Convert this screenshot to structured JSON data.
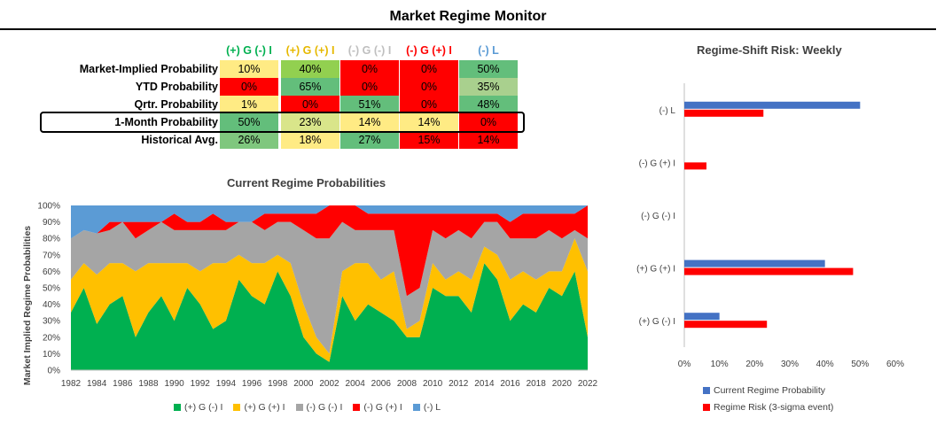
{
  "title": "Market Regime Monitor",
  "table": {
    "columns": [
      {
        "label": "(+) G (-) I",
        "color": "#00B050"
      },
      {
        "label": "(+) G (+) I",
        "color": "#E6B800"
      },
      {
        "label": "(-) G (-) I",
        "color": "#BFBFBF"
      },
      {
        "label": "(-) G (+) I",
        "color": "#FF0000"
      },
      {
        "label": "(-) L",
        "color": "#5B9BD5"
      }
    ],
    "rows": [
      {
        "label": "Market-Implied Probability",
        "values": [
          "10%",
          "40%",
          "0%",
          "0%",
          "50%"
        ],
        "colors": [
          "#FFEB84",
          "#92D050",
          "#FF0000",
          "#FF0000",
          "#63BE7B"
        ]
      },
      {
        "label": "YTD Probability",
        "values": [
          "0%",
          "65%",
          "0%",
          "0%",
          "35%"
        ],
        "colors": [
          "#FF0000",
          "#63BE7B",
          "#FF0000",
          "#FF0000",
          "#A9D08E"
        ]
      },
      {
        "label": "Qrtr. Probability",
        "values": [
          "1%",
          "0%",
          "51%",
          "0%",
          "48%"
        ],
        "colors": [
          "#FFEB84",
          "#FF0000",
          "#63BE7B",
          "#FF0000",
          "#63BE7B"
        ]
      },
      {
        "label": "1-Month Probability",
        "values": [
          "50%",
          "23%",
          "14%",
          "14%",
          "0%"
        ],
        "colors": [
          "#63BE7B",
          "#D9E58A",
          "#FFEB84",
          "#FFEB84",
          "#FF0000"
        ]
      },
      {
        "label": "Historical Avg.",
        "values": [
          "26%",
          "18%",
          "27%",
          "15%",
          "14%"
        ],
        "colors": [
          "#7FC77E",
          "#FFEB84",
          "#63BE7B",
          "#FF0000",
          "#FF0000"
        ]
      }
    ]
  },
  "chart_data": [
    {
      "type": "area",
      "title": "Current Regime Probabilities",
      "ylabel": "Market Implied Regime Probabilities",
      "xlabel": "",
      "ylim": [
        0,
        100
      ],
      "x_ticks": [
        "1982",
        "1984",
        "1986",
        "1988",
        "1990",
        "1992",
        "1994",
        "1996",
        "1998",
        "2000",
        "2002",
        "2004",
        "2006",
        "2008",
        "2010",
        "2012",
        "2014",
        "2016",
        "2018",
        "2020",
        "2022"
      ],
      "y_ticks": [
        "0%",
        "10%",
        "20%",
        "30%",
        "40%",
        "50%",
        "60%",
        "70%",
        "80%",
        "90%",
        "100%"
      ],
      "legend": "bottom",
      "x": [
        1982,
        1983,
        1984,
        1985,
        1986,
        1987,
        1988,
        1989,
        1990,
        1991,
        1992,
        1993,
        1994,
        1995,
        1996,
        1997,
        1998,
        1999,
        2000,
        2001,
        2002,
        2003,
        2004,
        2005,
        2006,
        2007,
        2008,
        2009,
        2010,
        2011,
        2012,
        2013,
        2014,
        2015,
        2016,
        2017,
        2018,
        2019,
        2020,
        2021,
        2022
      ],
      "series": [
        {
          "name": "(+) G (-) I",
          "color": "#00B050",
          "values": [
            35,
            50,
            28,
            40,
            45,
            20,
            35,
            45,
            30,
            50,
            40,
            25,
            30,
            55,
            45,
            40,
            60,
            45,
            20,
            10,
            5,
            45,
            30,
            40,
            35,
            30,
            20,
            20,
            50,
            45,
            45,
            35,
            65,
            55,
            30,
            40,
            35,
            50,
            45,
            60,
            20
          ]
        },
        {
          "name": "(+) G (+) I",
          "color": "#FFC000",
          "values": [
            20,
            15,
            30,
            25,
            20,
            40,
            30,
            20,
            35,
            15,
            20,
            40,
            35,
            15,
            20,
            25,
            10,
            20,
            20,
            10,
            5,
            15,
            35,
            25,
            20,
            30,
            5,
            10,
            15,
            10,
            15,
            20,
            10,
            15,
            25,
            20,
            20,
            10,
            15,
            20,
            40
          ]
        },
        {
          "name": "(-) G (-) I",
          "color": "#A5A5A5",
          "values": [
            25,
            20,
            25,
            20,
            25,
            20,
            20,
            25,
            20,
            20,
            25,
            20,
            20,
            20,
            25,
            20,
            20,
            25,
            45,
            60,
            70,
            30,
            20,
            20,
            30,
            25,
            20,
            20,
            20,
            25,
            25,
            25,
            15,
            20,
            25,
            20,
            25,
            25,
            20,
            5,
            20
          ]
        },
        {
          "name": "(-) G (+) I",
          "color": "#FF0000",
          "values": [
            0,
            0,
            0,
            5,
            0,
            10,
            5,
            0,
            10,
            5,
            5,
            10,
            5,
            0,
            0,
            10,
            5,
            5,
            10,
            15,
            20,
            10,
            15,
            10,
            10,
            10,
            50,
            45,
            10,
            15,
            10,
            15,
            5,
            5,
            10,
            15,
            15,
            10,
            15,
            10,
            20
          ]
        },
        {
          "name": "(-) L",
          "color": "#5B9BD5",
          "values": [
            20,
            15,
            17,
            10,
            10,
            10,
            10,
            10,
            5,
            10,
            10,
            5,
            10,
            10,
            10,
            5,
            5,
            5,
            5,
            5,
            0,
            0,
            0,
            5,
            5,
            5,
            5,
            5,
            5,
            5,
            5,
            5,
            5,
            5,
            10,
            5,
            5,
            5,
            5,
            5,
            0
          ]
        }
      ]
    },
    {
      "type": "bar",
      "orientation": "horizontal",
      "title": "Regime-Shift Risk: Weekly",
      "categories": [
        "(-) L",
        "(-) G (+) I",
        "(-) G (-) I",
        "(+) G (+) I",
        "(+) G (-) I"
      ],
      "xlim": [
        0,
        60
      ],
      "x_ticks": [
        "0%",
        "10%",
        "20%",
        "30%",
        "40%",
        "50%",
        "60%"
      ],
      "legend": "bottom",
      "series": [
        {
          "name": "Current Regime Probability",
          "color": "#4472C4",
          "values": [
            50,
            0,
            0,
            40,
            10
          ]
        },
        {
          "name": "Regime Risk (3-sigma event)",
          "color": "#FF0000",
          "values": [
            22.5,
            6.3,
            0,
            48,
            23.5
          ]
        }
      ]
    }
  ]
}
